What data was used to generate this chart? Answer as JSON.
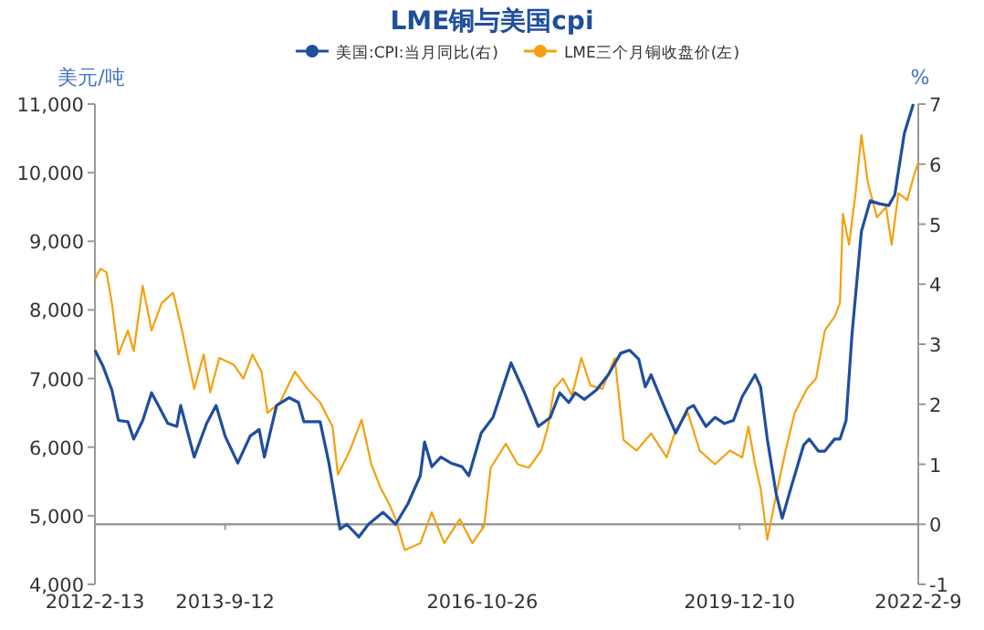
{
  "chart_data": {
    "type": "line",
    "title": "LME铜与美国cpi",
    "ylabel": "美元/吨",
    "y2label": "%",
    "legend": "top",
    "ref_lines": [
      {
        "axis": "y2",
        "value": 0,
        "color": "#999999"
      }
    ],
    "xlim": [
      "2012-02-13",
      "2022-02-09"
    ],
    "xticks": [
      {
        "value": "2012-02-13",
        "label": "2012-2-13"
      },
      {
        "value": "2013-09-12",
        "label": "2013-9-12"
      },
      {
        "value": "2016-10-26",
        "label": "2016-10-26"
      },
      {
        "value": "2019-12-10",
        "label": "2019-12-10"
      },
      {
        "value": "2022-02-09",
        "label": "2022-2-9"
      }
    ],
    "ylim": [
      4000,
      11000
    ],
    "yticks": [
      {
        "value": 4000,
        "label": "4,000"
      },
      {
        "value": 5000,
        "label": "5,000"
      },
      {
        "value": 6000,
        "label": "6,000"
      },
      {
        "value": 7000,
        "label": "7,000"
      },
      {
        "value": 8000,
        "label": "8,000"
      },
      {
        "value": 9000,
        "label": "9,000"
      },
      {
        "value": 10000,
        "label": "10,000"
      },
      {
        "value": 11000,
        "label": "11,000"
      }
    ],
    "y2lim": [
      -1,
      7
    ],
    "y2ticks": [
      -1,
      0,
      1,
      2,
      3,
      4,
      5,
      6,
      7
    ],
    "series": [
      {
        "name": "美国:CPI:当月同比(右)",
        "color": "#1f4e9c",
        "axis": "y2",
        "x": [
          "2012-02-13",
          "2012-03-19",
          "2012-04-28",
          "2012-05-27",
          "2012-07-08",
          "2012-08-03",
          "2012-09-12",
          "2012-10-21",
          "2012-11-20",
          "2013-01-01",
          "2013-02-10",
          "2013-02-27",
          "2013-04-28",
          "2013-06-22",
          "2013-08-03",
          "2013-09-12",
          "2013-11-07",
          "2014-01-01",
          "2014-02-10",
          "2014-03-05",
          "2014-04-28",
          "2014-06-22",
          "2014-08-03",
          "2014-08-27",
          "2014-11-07",
          "2014-12-16",
          "2015-02-03",
          "2015-03-05",
          "2015-04-28",
          "2015-06-09",
          "2015-08-13",
          "2015-10-08",
          "2015-12-02",
          "2016-01-25",
          "2016-02-13",
          "2016-03-16",
          "2016-04-25",
          "2016-06-09",
          "2016-07-28",
          "2016-08-27",
          "2016-10-21",
          "2016-12-12",
          "2017-03-02",
          "2017-04-25",
          "2017-07-01",
          "2017-08-23",
          "2017-10-04",
          "2017-11-13",
          "2017-12-12",
          "2018-01-21",
          "2018-03-16",
          "2018-05-07",
          "2018-07-01",
          "2018-08-10",
          "2018-09-19",
          "2018-10-18",
          "2018-11-13",
          "2019-01-08",
          "2019-03-02",
          "2019-04-25",
          "2019-05-20",
          "2019-07-14",
          "2019-08-23",
          "2019-10-04",
          "2019-11-13",
          "2019-12-22",
          "2020-02-17",
          "2020-03-12",
          "2020-04-11",
          "2020-05-20",
          "2020-06-16",
          "2020-07-25",
          "2020-09-19",
          "2020-10-14",
          "2020-11-23",
          "2020-12-22",
          "2021-02-03",
          "2021-02-27",
          "2021-03-26",
          "2021-04-21",
          "2021-06-02",
          "2021-07-11",
          "2021-08-20",
          "2021-10-01",
          "2021-10-28",
          "2021-12-09",
          "2022-01-18"
        ],
        "values": [
          2.9,
          2.64,
          2.24,
          1.73,
          1.71,
          1.42,
          1.73,
          2.19,
          1.98,
          1.68,
          1.63,
          1.98,
          1.12,
          1.68,
          1.98,
          1.47,
          1.02,
          1.47,
          1.58,
          1.12,
          1.98,
          2.11,
          2.03,
          1.71,
          1.71,
          1.02,
          -0.08,
          0.0,
          -0.21,
          0.0,
          0.2,
          0.0,
          0.35,
          0.81,
          1.37,
          0.96,
          1.12,
          1.02,
          0.96,
          0.81,
          1.52,
          1.78,
          2.69,
          2.24,
          1.63,
          1.78,
          2.19,
          2.03,
          2.19,
          2.08,
          2.24,
          2.49,
          2.85,
          2.9,
          2.75,
          2.29,
          2.49,
          1.98,
          1.52,
          1.93,
          1.98,
          1.63,
          1.78,
          1.68,
          1.73,
          2.13,
          2.49,
          2.29,
          1.42,
          0.51,
          0.1,
          0.61,
          1.32,
          1.42,
          1.22,
          1.22,
          1.42,
          1.42,
          1.73,
          3.15,
          4.88,
          5.39,
          5.34,
          5.31,
          5.49,
          6.51,
          7.0
        ]
      },
      {
        "name": "LME三个月铜收盘价(左)",
        "color": "#f5a00f",
        "axis": "y",
        "x": [
          "2012-02-13",
          "2012-03-09",
          "2012-04-04",
          "2012-04-28",
          "2012-05-27",
          "2012-07-08",
          "2012-08-03",
          "2012-09-12",
          "2012-10-21",
          "2012-12-05",
          "2013-01-25",
          "2013-03-05",
          "2013-04-28",
          "2013-06-09",
          "2013-07-08",
          "2013-08-17",
          "2013-10-21",
          "2013-12-02",
          "2014-01-11",
          "2014-02-20",
          "2014-03-19",
          "2014-05-13",
          "2014-07-18",
          "2014-09-12",
          "2014-11-07",
          "2015-01-01",
          "2015-01-25",
          "2015-03-19",
          "2015-05-10",
          "2015-06-22",
          "2015-08-03",
          "2015-09-12",
          "2015-10-08",
          "2015-11-17",
          "2016-01-25",
          "2016-03-16",
          "2016-05-10",
          "2016-07-18",
          "2016-09-12",
          "2016-11-03",
          "2016-12-02",
          "2016-12-12",
          "2017-02-07",
          "2017-04-01",
          "2017-05-20",
          "2017-07-14",
          "2017-08-13",
          "2017-09-09",
          "2017-10-18",
          "2017-11-27",
          "2018-01-08",
          "2018-02-17",
          "2018-04-11",
          "2018-06-05",
          "2018-07-14",
          "2018-09-09",
          "2018-11-13",
          "2019-01-21",
          "2019-03-02",
          "2019-04-25",
          "2019-06-16",
          "2019-08-23",
          "2019-10-28",
          "2019-12-22",
          "2020-01-18",
          "2020-02-17",
          "2020-03-12",
          "2020-04-11",
          "2020-05-20",
          "2020-07-01",
          "2020-08-10",
          "2020-10-04",
          "2020-11-13",
          "2020-12-22",
          "2021-02-03",
          "2021-02-27",
          "2021-03-12",
          "2021-04-08",
          "2021-05-07",
          "2021-06-02",
          "2021-07-01",
          "2021-08-10",
          "2021-09-19",
          "2021-10-14",
          "2021-11-13",
          "2021-12-22",
          "2022-01-20",
          "2022-02-09"
        ],
        "values": [
          8450,
          8600,
          8550,
          8100,
          7350,
          7700,
          7400,
          8350,
          7700,
          8100,
          8250,
          7700,
          6850,
          7350,
          6800,
          7300,
          7200,
          7000,
          7350,
          7100,
          6500,
          6650,
          7100,
          6850,
          6650,
          6300,
          5600,
          5950,
          6400,
          5750,
          5400,
          5150,
          4950,
          4500,
          4600,
          5050,
          4600,
          4950,
          4600,
          4850,
          5700,
          5750,
          6050,
          5750,
          5700,
          5950,
          6300,
          6850,
          7000,
          6750,
          7300,
          6900,
          6850,
          7300,
          6100,
          5950,
          6200,
          5850,
          6250,
          6500,
          5950,
          5750,
          5950,
          5850,
          6300,
          5750,
          5400,
          4650,
          5300,
          5950,
          6500,
          6850,
          7000,
          7700,
          7900,
          8100,
          9400,
          8950,
          9700,
          10550,
          9850,
          9350,
          9500,
          8950,
          9700,
          9600,
          9950,
          10150
        ]
      }
    ]
  }
}
